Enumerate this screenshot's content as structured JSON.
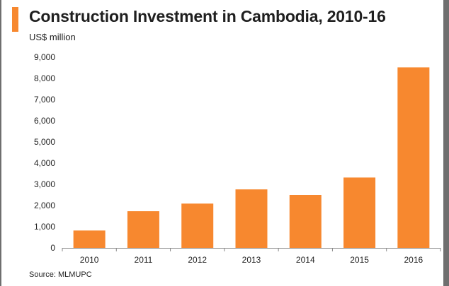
{
  "header": {
    "title": "Construction Investment in Cambodia, 2010-16",
    "subtitle": "US$ million",
    "accent_color": "#f7882f"
  },
  "footer": {
    "source": "Source: MLMUPC"
  },
  "chart_data": {
    "type": "bar",
    "title": "Construction Investment in Cambodia, 2010-16",
    "ylabel": "US$ million",
    "xlabel": "",
    "categories": [
      "2010",
      "2011",
      "2012",
      "2013",
      "2014",
      "2015",
      "2016"
    ],
    "values": [
      820,
      1730,
      2090,
      2760,
      2500,
      3320,
      8520
    ],
    "ylim": [
      0,
      9000
    ],
    "yticks": [
      0,
      1000,
      2000,
      3000,
      4000,
      5000,
      6000,
      7000,
      8000,
      9000
    ],
    "ytick_labels": [
      "0",
      "1,000",
      "2,000",
      "3,000",
      "4,000",
      "5,000",
      "6,000",
      "7,000",
      "8,000",
      "9,000"
    ],
    "bar_color": "#f7882f",
    "grid": false,
    "legend": "none"
  }
}
